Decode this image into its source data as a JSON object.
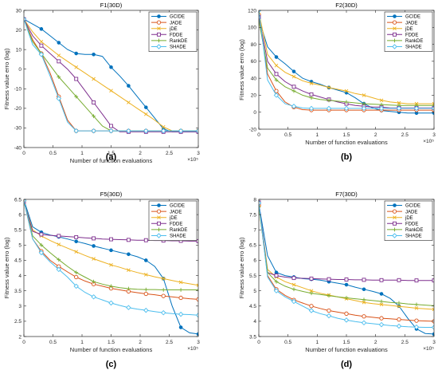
{
  "colors": {
    "GCIDE": "#0072BD",
    "JADE": "#D95319",
    "jDE": "#EDB120",
    "FDDE": "#7E2F8E",
    "RankDE": "#77AC30",
    "SHADE": "#4DBEEE"
  },
  "markers": {
    "GCIDE": "circle-filled",
    "JADE": "circle-open",
    "jDE": "x",
    "FDDE": "square-open",
    "RankDE": "plus",
    "SHADE": "diamond-open"
  },
  "chart_data": [
    {
      "type": "line",
      "caption": "(a)",
      "title": "F1(30D)",
      "xlabel": "Number of function evaluations",
      "ylabel": "Fitness value erro (log)",
      "x_exponent": "×10⁵",
      "xlim": [
        0,
        3
      ],
      "ylim": [
        -40,
        30
      ],
      "xticks": [
        "0",
        "0.5",
        "1",
        "1.5",
        "2",
        "2.5",
        "3"
      ],
      "yticks": [
        "-40",
        "-30",
        "-20",
        "-10",
        "0",
        "10",
        "20",
        "30"
      ],
      "legend": "top-right",
      "grid": false,
      "x": [
        0,
        0.15,
        0.3,
        0.45,
        0.6,
        0.75,
        0.9,
        1.05,
        1.2,
        1.35,
        1.5,
        1.65,
        1.8,
        1.95,
        2.1,
        2.25,
        2.4,
        2.55,
        2.7,
        2.85,
        3.0
      ],
      "series": [
        {
          "name": "GCIDE",
          "values": [
            25.5,
            23,
            20.5,
            17,
            13.5,
            10,
            8,
            7.5,
            7.5,
            6.5,
            1,
            -3.5,
            -8.5,
            -14,
            -19.5,
            -25,
            -30.5,
            -32,
            -32,
            -32,
            -32
          ]
        },
        {
          "name": "JADE",
          "values": [
            25.5,
            15,
            8,
            -2,
            -14,
            -26,
            -31.5,
            -31.5,
            -31.5,
            -31.5,
            -31.5,
            -31.5,
            -31.5,
            -31.5,
            -31.5,
            -31.5,
            -31.5,
            -31.5,
            -31.5,
            -31.5,
            -31.5
          ]
        },
        {
          "name": "jDE",
          "values": [
            25.5,
            19,
            14,
            10.5,
            7,
            4,
            1,
            -2,
            -5,
            -8,
            -11,
            -14,
            -17,
            -20,
            -23,
            -26,
            -29.5,
            -31.5,
            -31.5,
            -31.5,
            -31.5
          ]
        },
        {
          "name": "FDDE",
          "values": [
            25.5,
            17,
            12,
            8,
            4,
            0,
            -5,
            -11,
            -17,
            -23,
            -29,
            -32,
            -32,
            -32,
            -32,
            -32,
            -32,
            -32,
            -32,
            -32,
            -32
          ]
        },
        {
          "name": "RankDE",
          "values": [
            25.5,
            14,
            8,
            2,
            -4,
            -9,
            -14,
            -19,
            -24,
            -29,
            -31.5,
            -31.5,
            -31.5,
            -31.5,
            -31.5,
            -31.5,
            -31.5,
            -31.5,
            -31.5,
            -31.5,
            -31.5
          ]
        },
        {
          "name": "SHADE",
          "values": [
            25.5,
            12.5,
            7.5,
            -3.5,
            -15,
            -27,
            -31.5,
            -31.5,
            -31.5,
            -31.5,
            -31.5,
            -31.5,
            -31.5,
            -31.5,
            -31.5,
            -31.5,
            -31.5,
            -31.5,
            -31.5,
            -31.5,
            -31.5
          ]
        }
      ]
    },
    {
      "type": "line",
      "caption": "(b)",
      "title": "F2(30D)",
      "xlabel": "Number of function evaluations",
      "ylabel": "Fitness value erro (log)",
      "x_exponent": "×10⁵",
      "xlim": [
        0,
        3
      ],
      "ylim": [
        -20,
        120
      ],
      "xticks": [
        "0",
        "0.5",
        "1",
        "1.5",
        "2",
        "2.5",
        "3"
      ],
      "yticks": [
        "-20",
        "0",
        "20",
        "40",
        "60",
        "80",
        "100",
        "120"
      ],
      "legend": "top-right",
      "grid": false,
      "x": [
        0,
        0.15,
        0.3,
        0.45,
        0.6,
        0.75,
        0.9,
        1.05,
        1.2,
        1.35,
        1.5,
        1.65,
        1.8,
        1.95,
        2.1,
        2.25,
        2.4,
        2.55,
        2.7,
        2.85,
        3.0
      ],
      "series": [
        {
          "name": "GCIDE",
          "values": [
            110,
            77,
            65,
            57,
            48,
            40,
            36,
            33,
            29,
            26,
            23,
            17,
            10,
            5,
            2,
            1,
            0,
            -1,
            -1,
            -1,
            -1
          ]
        },
        {
          "name": "JADE",
          "values": [
            115,
            45,
            25,
            12,
            6,
            3,
            2.5,
            2.5,
            2.5,
            2.5,
            2.5,
            2.5,
            2.5,
            2.5,
            2.5,
            2.5,
            2.5,
            2.5,
            2.5,
            2.5,
            2.5
          ]
        },
        {
          "name": "jDE",
          "values": [
            118,
            68,
            55,
            47,
            42,
            37,
            34,
            32,
            29,
            27,
            25,
            22,
            20,
            17,
            14,
            12,
            11,
            10,
            10,
            10,
            10
          ]
        },
        {
          "name": "FDDE",
          "values": [
            112,
            60,
            45,
            36,
            30,
            25,
            21,
            18,
            15,
            12,
            10,
            8,
            7,
            6,
            6,
            5,
            5,
            5,
            5,
            5,
            5
          ]
        },
        {
          "name": "RankDE",
          "values": [
            108,
            52,
            38,
            30,
            25,
            20,
            17,
            15,
            14,
            13,
            12,
            11,
            10,
            9.5,
            9,
            8.5,
            8,
            8,
            8,
            8,
            8
          ]
        },
        {
          "name": "SHADE",
          "values": [
            120,
            38,
            20,
            10,
            7,
            5,
            4.5,
            4.5,
            4.5,
            4.5,
            4.5,
            4.5,
            4.5,
            4.5,
            4.5,
            4.5,
            4.5,
            4.5,
            4.5,
            4.5,
            4.5
          ]
        }
      ]
    },
    {
      "type": "line",
      "caption": "(c)",
      "title": "F5(30D)",
      "xlabel": "Number of function evaluations",
      "ylabel": "Fitness value erro (log)",
      "x_exponent": "×10⁵",
      "xlim": [
        0,
        3
      ],
      "ylim": [
        2,
        6.5
      ],
      "xticks": [
        "0",
        "0.5",
        "1",
        "1.5",
        "2",
        "2.5",
        "3"
      ],
      "yticks": [
        "2",
        "2.5",
        "3",
        "3.5",
        "4",
        "4.5",
        "5",
        "5.5",
        "6",
        "6.5"
      ],
      "legend": "top-right",
      "grid": false,
      "x": [
        0,
        0.15,
        0.3,
        0.45,
        0.6,
        0.75,
        0.9,
        1.05,
        1.2,
        1.35,
        1.5,
        1.65,
        1.8,
        1.95,
        2.1,
        2.25,
        2.4,
        2.55,
        2.7,
        2.85,
        3.0
      ],
      "series": [
        {
          "name": "GCIDE",
          "values": [
            6.48,
            5.6,
            5.42,
            5.33,
            5.27,
            5.2,
            5.12,
            5.05,
            4.97,
            4.9,
            4.83,
            4.76,
            4.7,
            4.62,
            4.5,
            4.3,
            3.9,
            3.0,
            2.3,
            2.12,
            2.08
          ]
        },
        {
          "name": "JADE",
          "values": [
            6.45,
            5.2,
            4.8,
            4.5,
            4.3,
            4.12,
            3.95,
            3.82,
            3.72,
            3.65,
            3.58,
            3.53,
            3.48,
            3.44,
            3.4,
            3.37,
            3.33,
            3.3,
            3.27,
            3.24,
            3.22
          ]
        },
        {
          "name": "jDE",
          "values": [
            6.4,
            5.5,
            5.3,
            5.15,
            5.02,
            4.9,
            4.78,
            4.66,
            4.55,
            4.45,
            4.35,
            4.27,
            4.18,
            4.1,
            4.03,
            3.96,
            3.9,
            3.84,
            3.78,
            3.73,
            3.68
          ]
        },
        {
          "name": "FDDE",
          "values": [
            6.42,
            5.45,
            5.35,
            5.32,
            5.3,
            5.28,
            5.26,
            5.24,
            5.22,
            5.2,
            5.19,
            5.18,
            5.17,
            5.16,
            5.16,
            5.15,
            5.15,
            5.14,
            5.14,
            5.13,
            5.13
          ]
        },
        {
          "name": "RankDE",
          "values": [
            6.44,
            5.3,
            5.0,
            4.75,
            4.52,
            4.3,
            4.1,
            3.95,
            3.8,
            3.72,
            3.65,
            3.6,
            3.57,
            3.55,
            3.54,
            3.54,
            3.53,
            3.53,
            3.53,
            3.53,
            3.53
          ]
        },
        {
          "name": "SHADE",
          "values": [
            6.46,
            5.2,
            4.75,
            4.45,
            4.2,
            3.95,
            3.65,
            3.45,
            3.3,
            3.2,
            3.1,
            3.02,
            2.95,
            2.9,
            2.86,
            2.82,
            2.78,
            2.75,
            2.73,
            2.72,
            2.7
          ]
        }
      ]
    },
    {
      "type": "line",
      "caption": "(d)",
      "title": "F7(30D)",
      "xlabel": "Number of function evaluations",
      "ylabel": "Fitness value erro (log)",
      "x_exponent": "×10⁵",
      "xlim": [
        0,
        3
      ],
      "ylim": [
        3.5,
        8
      ],
      "xticks": [
        "0",
        "0.5",
        "1",
        "1.5",
        "2",
        "2.5",
        "3"
      ],
      "yticks": [
        "3.5",
        "4",
        "4.5",
        "5",
        "5.5",
        "6",
        "6.5",
        "7",
        "7.5",
        "8"
      ],
      "legend": "top-right",
      "grid": false,
      "x": [
        0,
        0.15,
        0.3,
        0.45,
        0.6,
        0.75,
        0.9,
        1.05,
        1.2,
        1.35,
        1.5,
        1.65,
        1.8,
        1.95,
        2.1,
        2.25,
        2.4,
        2.55,
        2.7,
        2.85,
        3.0
      ],
      "series": [
        {
          "name": "GCIDE",
          "values": [
            7.85,
            6.15,
            5.6,
            5.5,
            5.45,
            5.4,
            5.38,
            5.35,
            5.3,
            5.25,
            5.2,
            5.12,
            5.05,
            4.98,
            4.9,
            4.75,
            4.5,
            4.1,
            3.75,
            3.6,
            3.58
          ]
        },
        {
          "name": "JADE",
          "values": [
            7.8,
            5.5,
            5.05,
            4.85,
            4.7,
            4.6,
            4.5,
            4.42,
            4.35,
            4.3,
            4.25,
            4.2,
            4.16,
            4.13,
            4.1,
            4.08,
            4.06,
            4.04,
            4.02,
            4.01,
            4.0
          ]
        },
        {
          "name": "jDE",
          "values": [
            7.82,
            5.7,
            5.45,
            5.3,
            5.2,
            5.1,
            5.0,
            4.92,
            4.86,
            4.8,
            4.74,
            4.68,
            4.62,
            4.58,
            4.55,
            4.52,
            4.49,
            4.46,
            4.43,
            4.41,
            4.39
          ]
        },
        {
          "name": "FDDE",
          "values": [
            7.9,
            5.6,
            5.5,
            5.45,
            5.42,
            5.41,
            5.4,
            5.39,
            5.38,
            5.37,
            5.37,
            5.36,
            5.36,
            5.35,
            5.35,
            5.35,
            5.35,
            5.34,
            5.34,
            5.34,
            5.34
          ]
        },
        {
          "name": "RankDE",
          "values": [
            7.75,
            5.6,
            5.3,
            5.15,
            5.05,
            4.98,
            4.92,
            4.88,
            4.84,
            4.8,
            4.77,
            4.74,
            4.71,
            4.68,
            4.65,
            4.62,
            4.6,
            4.57,
            4.55,
            4.53,
            4.51
          ]
        },
        {
          "name": "SHADE",
          "values": [
            7.88,
            5.45,
            5.0,
            4.8,
            4.65,
            4.5,
            4.35,
            4.25,
            4.18,
            4.1,
            4.04,
            3.99,
            3.95,
            3.92,
            3.89,
            3.86,
            3.84,
            3.82,
            3.81,
            3.8,
            3.8
          ]
        }
      ]
    }
  ]
}
